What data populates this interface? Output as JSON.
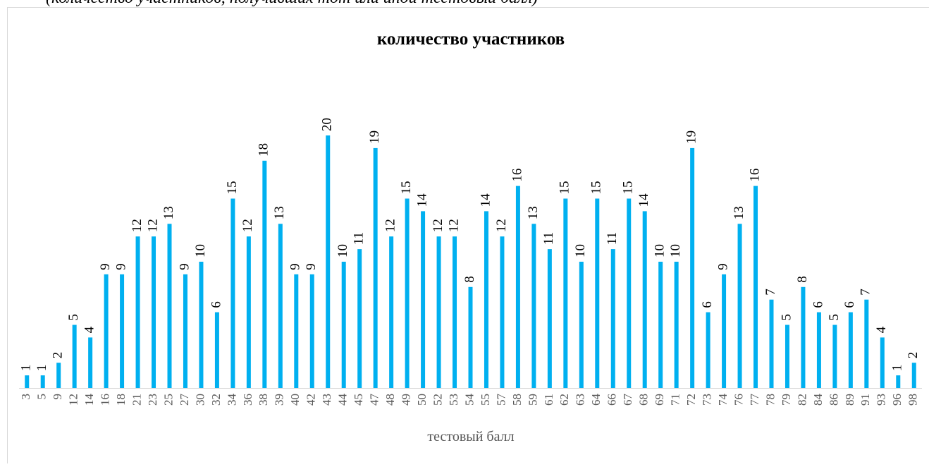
{
  "caption": "(количество участников, получивших тот или иной тестовый балл)",
  "chart_data": {
    "type": "bar",
    "title": "количество участников",
    "x_label": "тестовый балл",
    "color": "#00b0f0",
    "categories": [
      "3",
      "5",
      "9",
      "12",
      "14",
      "16",
      "18",
      "21",
      "23",
      "25",
      "27",
      "30",
      "32",
      "34",
      "36",
      "38",
      "39",
      "40",
      "42",
      "43",
      "44",
      "45",
      "47",
      "48",
      "49",
      "50",
      "52",
      "53",
      "54",
      "55",
      "57",
      "58",
      "59",
      "61",
      "62",
      "63",
      "64",
      "66",
      "67",
      "68",
      "69",
      "71",
      "72",
      "73",
      "74",
      "76",
      "77",
      "78",
      "79",
      "82",
      "84",
      "86",
      "89",
      "91",
      "93",
      "96",
      "98"
    ],
    "values": [
      1,
      1,
      2,
      5,
      4,
      9,
      9,
      12,
      12,
      13,
      9,
      10,
      6,
      15,
      12,
      18,
      13,
      9,
      9,
      20,
      10,
      11,
      19,
      12,
      15,
      14,
      12,
      12,
      8,
      14,
      12,
      16,
      13,
      11,
      15,
      10,
      15,
      11,
      15,
      14,
      10,
      10,
      19,
      6,
      9,
      13,
      16,
      7,
      5,
      8,
      6,
      5,
      6,
      7,
      4,
      1,
      2
    ]
  }
}
